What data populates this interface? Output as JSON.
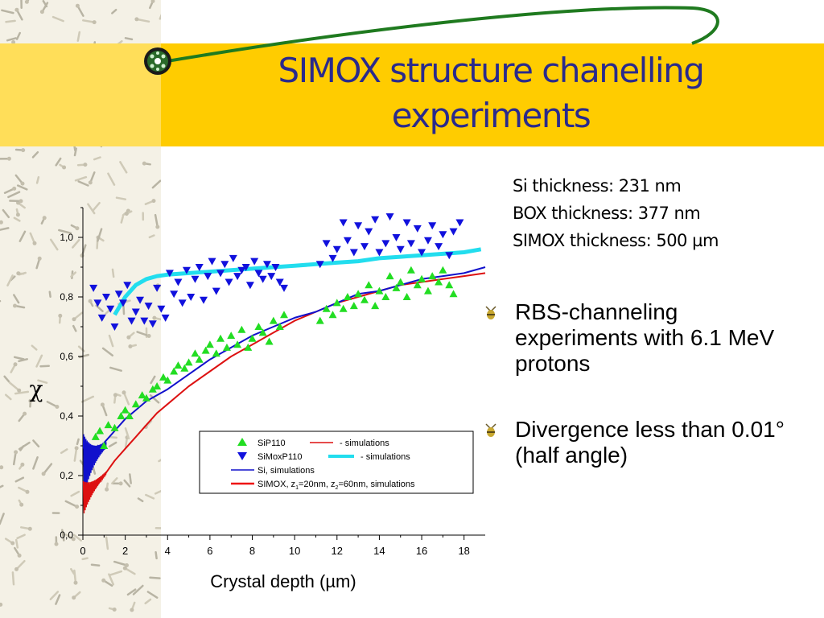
{
  "slide": {
    "title": "SIMOX structure chanelling experiments",
    "info_lines": [
      "Si thickness: 231 nm",
      "BOX thickness: 377 nm",
      "SIMOX thickness: 500 µm"
    ],
    "bullets": [
      {
        "text": "RBS-channeling experiments with 6.1 MeV protons",
        "icon": "bee-bullet-icon"
      },
      {
        "text": "Divergence less than 0.01° (half angle)",
        "icon": "bee-bullet-icon"
      }
    ],
    "colors": {
      "title": "#2a2a8c",
      "band": "#ffcc00",
      "swoosh": "#1f7a1f"
    }
  },
  "chart_data": {
    "type": "scatter",
    "xlabel": "Crystal depth (µm)",
    "ylabel": "χ",
    "xlim": [
      0,
      19
    ],
    "ylim": [
      0,
      1.1
    ],
    "xticks": [
      "0",
      "2",
      "4",
      "6",
      "8",
      "10",
      "12",
      "14",
      "16",
      "18"
    ],
    "yticks": [
      "0,0",
      "0,2",
      "0,4",
      "0,6",
      "0,8",
      "1,0"
    ],
    "legend_position": "bottom-right",
    "series": [
      {
        "name": "SiP110",
        "kind": "points",
        "marker": "triangle-up",
        "color": "#22dd22",
        "x": [
          0.6,
          0.8,
          1.0,
          1.2,
          1.5,
          1.8,
          2.0,
          2.2,
          2.5,
          2.8,
          3.0,
          3.3,
          3.5,
          3.8,
          4.0,
          4.3,
          4.5,
          4.8,
          5.0,
          5.3,
          5.5,
          5.8,
          6.0,
          6.3,
          6.5,
          6.8,
          7.0,
          7.3,
          7.5,
          7.8,
          8.0,
          8.3,
          8.5,
          8.8,
          9.0,
          9.3,
          9.5,
          11.2,
          11.5,
          11.8,
          12.0,
          12.3,
          12.5,
          12.8,
          13.0,
          13.3,
          13.5,
          13.8,
          14.0,
          14.3,
          14.5,
          14.8,
          15.0,
          15.3,
          15.5,
          15.8,
          16.0,
          16.3,
          16.5,
          16.8,
          17.0,
          17.3,
          17.5
        ],
        "y": [
          0.33,
          0.35,
          0.3,
          0.37,
          0.36,
          0.4,
          0.42,
          0.4,
          0.44,
          0.47,
          0.46,
          0.49,
          0.5,
          0.53,
          0.52,
          0.55,
          0.57,
          0.56,
          0.58,
          0.61,
          0.59,
          0.62,
          0.64,
          0.61,
          0.66,
          0.63,
          0.67,
          0.64,
          0.69,
          0.63,
          0.66,
          0.7,
          0.68,
          0.65,
          0.72,
          0.7,
          0.74,
          0.72,
          0.76,
          0.74,
          0.78,
          0.76,
          0.8,
          0.77,
          0.81,
          0.79,
          0.84,
          0.77,
          0.82,
          0.8,
          0.87,
          0.83,
          0.85,
          0.8,
          0.89,
          0.84,
          0.86,
          0.82,
          0.87,
          0.85,
          0.89,
          0.84,
          0.81
        ]
      },
      {
        "name": "SiMoxP110",
        "kind": "points",
        "marker": "triangle-down",
        "color": "#1111dd",
        "x": [
          0.5,
          0.7,
          0.9,
          1.1,
          1.3,
          1.5,
          1.7,
          1.9,
          2.1,
          2.3,
          2.5,
          2.7,
          2.9,
          3.1,
          3.3,
          3.5,
          3.7,
          3.9,
          4.1,
          4.3,
          4.5,
          4.7,
          4.9,
          5.1,
          5.3,
          5.5,
          5.7,
          5.9,
          6.1,
          6.3,
          6.5,
          6.7,
          6.9,
          7.1,
          7.3,
          7.5,
          7.7,
          7.9,
          8.1,
          8.3,
          8.5,
          8.7,
          8.9,
          9.1,
          9.3,
          9.5,
          11.2,
          11.5,
          11.8,
          12.0,
          12.3,
          12.5,
          12.8,
          13.0,
          13.3,
          13.5,
          13.8,
          14.0,
          14.3,
          14.5,
          14.8,
          15.0,
          15.3,
          15.5,
          15.8,
          16.0,
          16.3,
          16.5,
          16.8,
          17.0,
          17.3,
          17.5,
          17.8
        ],
        "y": [
          0.83,
          0.78,
          0.73,
          0.8,
          0.76,
          0.7,
          0.81,
          0.78,
          0.84,
          0.72,
          0.75,
          0.79,
          0.72,
          0.77,
          0.71,
          0.83,
          0.76,
          0.73,
          0.88,
          0.81,
          0.85,
          0.78,
          0.89,
          0.8,
          0.86,
          0.9,
          0.79,
          0.87,
          0.92,
          0.82,
          0.88,
          0.91,
          0.85,
          0.93,
          0.87,
          0.89,
          0.9,
          0.84,
          0.92,
          0.88,
          0.86,
          0.91,
          0.87,
          0.9,
          0.85,
          0.83,
          0.91,
          0.98,
          0.93,
          0.96,
          1.05,
          0.99,
          0.95,
          1.04,
          0.97,
          1.02,
          1.06,
          0.95,
          0.98,
          1.07,
          1.0,
          0.96,
          1.05,
          0.98,
          1.03,
          0.95,
          0.99,
          1.04,
          0.97,
          1.01,
          0.94,
          1.02,
          1.05
        ]
      },
      {
        "name": "- simulations",
        "kind": "line",
        "color": "#dd1111",
        "x": [
          0.3,
          0.6,
          0.9,
          1.2,
          1.5,
          2,
          2.5,
          3,
          3.5,
          4,
          4.5,
          5,
          6,
          7,
          8,
          9,
          10,
          11,
          12,
          13,
          14,
          15,
          16,
          17,
          18,
          19
        ],
        "y": [
          0.13,
          0.16,
          0.19,
          0.22,
          0.25,
          0.29,
          0.33,
          0.37,
          0.41,
          0.44,
          0.47,
          0.5,
          0.55,
          0.6,
          0.64,
          0.68,
          0.72,
          0.75,
          0.78,
          0.8,
          0.82,
          0.84,
          0.85,
          0.86,
          0.87,
          0.88
        ]
      },
      {
        "name": "- simulations",
        "kind": "line",
        "color": "#22ddee",
        "x": [
          1.5,
          2,
          2.5,
          3,
          3.5,
          4,
          5,
          6,
          7,
          8,
          9,
          10,
          11,
          12,
          13,
          14,
          15,
          16,
          17,
          18,
          18.8
        ],
        "y": [
          0.74,
          0.8,
          0.84,
          0.86,
          0.87,
          0.875,
          0.88,
          0.885,
          0.89,
          0.895,
          0.9,
          0.905,
          0.91,
          0.915,
          0.92,
          0.93,
          0.935,
          0.94,
          0.945,
          0.95,
          0.96
        ]
      },
      {
        "name": "Si, simulations",
        "kind": "line",
        "color": "#1111cc",
        "x": [
          1.0,
          1.5,
          2,
          2.5,
          3,
          3.5,
          4,
          5,
          6,
          7,
          8,
          9,
          10,
          11,
          12,
          13,
          14,
          15,
          16,
          17,
          18,
          19
        ],
        "y": [
          0.31,
          0.35,
          0.39,
          0.42,
          0.45,
          0.47,
          0.49,
          0.54,
          0.59,
          0.63,
          0.67,
          0.7,
          0.73,
          0.75,
          0.78,
          0.81,
          0.82,
          0.84,
          0.86,
          0.87,
          0.88,
          0.9
        ]
      },
      {
        "name": "SIMOX, z1=20nm, z2=60nm, simulations",
        "kind": "line",
        "color": "#ee1111"
      }
    ],
    "legend": {
      "row1": [
        "SiP110",
        "- simulations"
      ],
      "row2": [
        "SiMoxP110",
        "- simulations"
      ],
      "row3": "Si, simulations",
      "row4": {
        "main": "SIMOX, z",
        "sub1": "1",
        "mid": "=20nm, z",
        "sub2": "2",
        "end": "=60nm, simulations"
      }
    }
  }
}
